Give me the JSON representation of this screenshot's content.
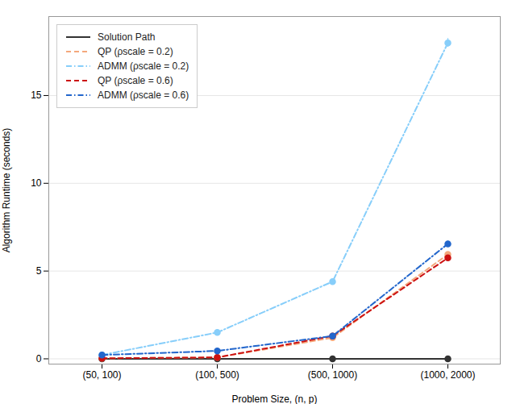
{
  "chart_data": {
    "type": "line",
    "xlabel": "Problem Size, (n, p)",
    "ylabel": "Algorithm Runtime (seconds)",
    "categories": [
      "(50, 100)",
      "(100, 500)",
      "(500, 1000)",
      "(1000, 2000)"
    ],
    "series": [
      {
        "name": "Solution Path",
        "color": "#333333",
        "line_style": "solid",
        "marker": "circle",
        "values": [
          0.0,
          0.0,
          0.0,
          0.0
        ]
      },
      {
        "name": "QP (ρscale = 0.2)",
        "color": "#F4A87C",
        "line_style": "dashed",
        "marker": "circle",
        "values": [
          0.03,
          0.08,
          1.2,
          5.95
        ],
        "errors": [
          0.005,
          0.008,
          0.05,
          0.12
        ]
      },
      {
        "name": "ADMM (ρscale = 0.2)",
        "color": "#87CEFA",
        "line_style": "dashdot",
        "marker": "circle",
        "values": [
          0.22,
          1.5,
          4.4,
          18.0
        ],
        "errors": [
          0.03,
          0.07,
          0.12,
          0.25
        ]
      },
      {
        "name": "QP (ρscale = 0.6)",
        "color": "#CC1111",
        "line_style": "dashed",
        "marker": "circle",
        "values": [
          0.03,
          0.08,
          1.3,
          5.75
        ],
        "errors": [
          0.005,
          0.008,
          0.06,
          0.1
        ]
      },
      {
        "name": "ADMM (ρscale = 0.6)",
        "color": "#2266CC",
        "line_style": "dashdot",
        "marker": "circle",
        "values": [
          0.22,
          0.45,
          1.3,
          6.55
        ],
        "errors": [
          0.03,
          0.015,
          0.05,
          0.15
        ]
      }
    ],
    "ylim": [
      -0.3,
      19.5
    ],
    "yticks": [
      0,
      5,
      10,
      15
    ],
    "grid": "y",
    "legend": "upper left"
  }
}
